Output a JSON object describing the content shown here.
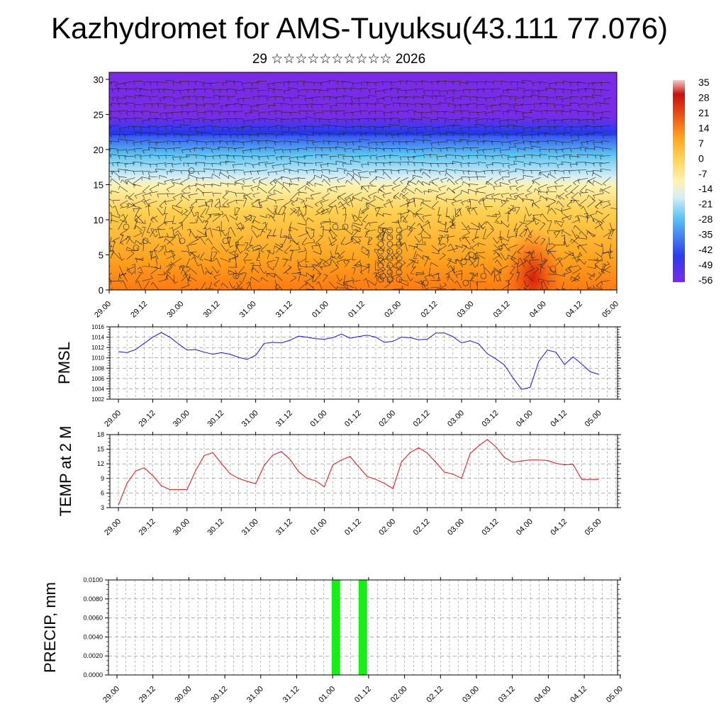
{
  "header": {
    "title": "Kazhydromet for AMS-Tuyuksu(43.111 77.076)",
    "subtitle": "29 ☆☆☆☆☆☆☆☆☆☆ 2026"
  },
  "time_labels": [
    "29.00",
    "29.12",
    "30.00",
    "30.12",
    "31.00",
    "31.12",
    "01.00",
    "01.12",
    "02.00",
    "02.12",
    "03.00",
    "03.12",
    "04.00",
    "04.12",
    "05.00"
  ],
  "chart_data": [
    {
      "type": "heatmap",
      "name": "cross-section",
      "y_ticks": [
        0,
        5,
        10,
        15,
        20,
        25,
        30
      ],
      "ylim": [
        0,
        31
      ],
      "note_overlay": "wind barbs",
      "colorbar_labels": [
        "35",
        "28",
        "21",
        "14",
        "7",
        "0",
        "-7",
        "-14",
        "-21",
        "-28",
        "-35",
        "-42",
        "-49",
        "-56"
      ],
      "colors": {
        "top": "#7a2be6",
        "blue": "#2c3cf0",
        "sky": "#5cc6f2",
        "pale": "#fff3b0",
        "yellow": "#ffd050",
        "orange": "#ffa21e",
        "deep_orange": "#ff7a12",
        "red": "#e23a10"
      }
    },
    {
      "type": "line",
      "ylabel": "PMSL",
      "y_ticks": [
        "1002",
        "1004",
        "1006",
        "1008",
        "1010",
        "1012",
        "1014",
        "1016"
      ],
      "ylim": [
        1002,
        1016
      ],
      "color": "#1414d8",
      "values": [
        1011.2,
        1011.0,
        1011.6,
        1012.8,
        1014.0,
        1014.9,
        1014.0,
        1012.7,
        1011.5,
        1011.6,
        1011.1,
        1010.7,
        1011.0,
        1010.7,
        1010.1,
        1009.7,
        1010.5,
        1012.8,
        1013.0,
        1012.9,
        1013.4,
        1014.2,
        1014.0,
        1013.7,
        1013.6,
        1013.9,
        1014.6,
        1013.8,
        1014.1,
        1014.4,
        1014.0,
        1013.0,
        1013.2,
        1014.0,
        1013.9,
        1013.5,
        1013.6,
        1014.8,
        1014.8,
        1014.1,
        1012.9,
        1013.3,
        1012.7,
        1010.8,
        1009.8,
        1008.6,
        1006.1,
        1003.9,
        1004.3,
        1009.3,
        1011.5,
        1011.1,
        1008.7,
        1010.2,
        1008.8,
        1007.3,
        1006.8
      ]
    },
    {
      "type": "line",
      "ylabel": "TEMP at 2 M",
      "y_ticks": [
        "3",
        "6",
        "9",
        "12",
        "15",
        "18"
      ],
      "ylim": [
        3,
        18
      ],
      "color": "#e01010",
      "values": [
        3.5,
        8.0,
        10.5,
        11.2,
        9.6,
        7.5,
        6.7,
        6.7,
        6.7,
        10.6,
        13.7,
        14.3,
        12.1,
        10.0,
        9.0,
        8.4,
        7.9,
        11.7,
        13.8,
        14.5,
        12.9,
        10.4,
        9.0,
        8.5,
        7.3,
        11.8,
        12.8,
        13.5,
        11.4,
        9.4,
        8.8,
        8.0,
        6.9,
        12.4,
        14.3,
        15.3,
        14.2,
        12.3,
        10.3,
        9.9,
        9.0,
        14.1,
        15.7,
        17.0,
        15.5,
        13.3,
        12.3,
        12.6,
        12.8,
        12.8,
        12.7,
        12.1,
        11.8,
        11.9,
        8.8,
        8.8,
        8.8
      ]
    },
    {
      "type": "bar",
      "ylabel": "PRECIP, mm",
      "y_ticks": [
        "0.0000",
        "0.0020",
        "0.0040",
        "0.0060",
        "0.0080",
        "0.0100"
      ],
      "ylim": [
        0,
        0.01
      ],
      "color": "#16ee16",
      "bars": [
        {
          "t": 6.09,
          "value": 0.01
        },
        {
          "t": 6.84,
          "value": 0.01
        }
      ]
    }
  ]
}
